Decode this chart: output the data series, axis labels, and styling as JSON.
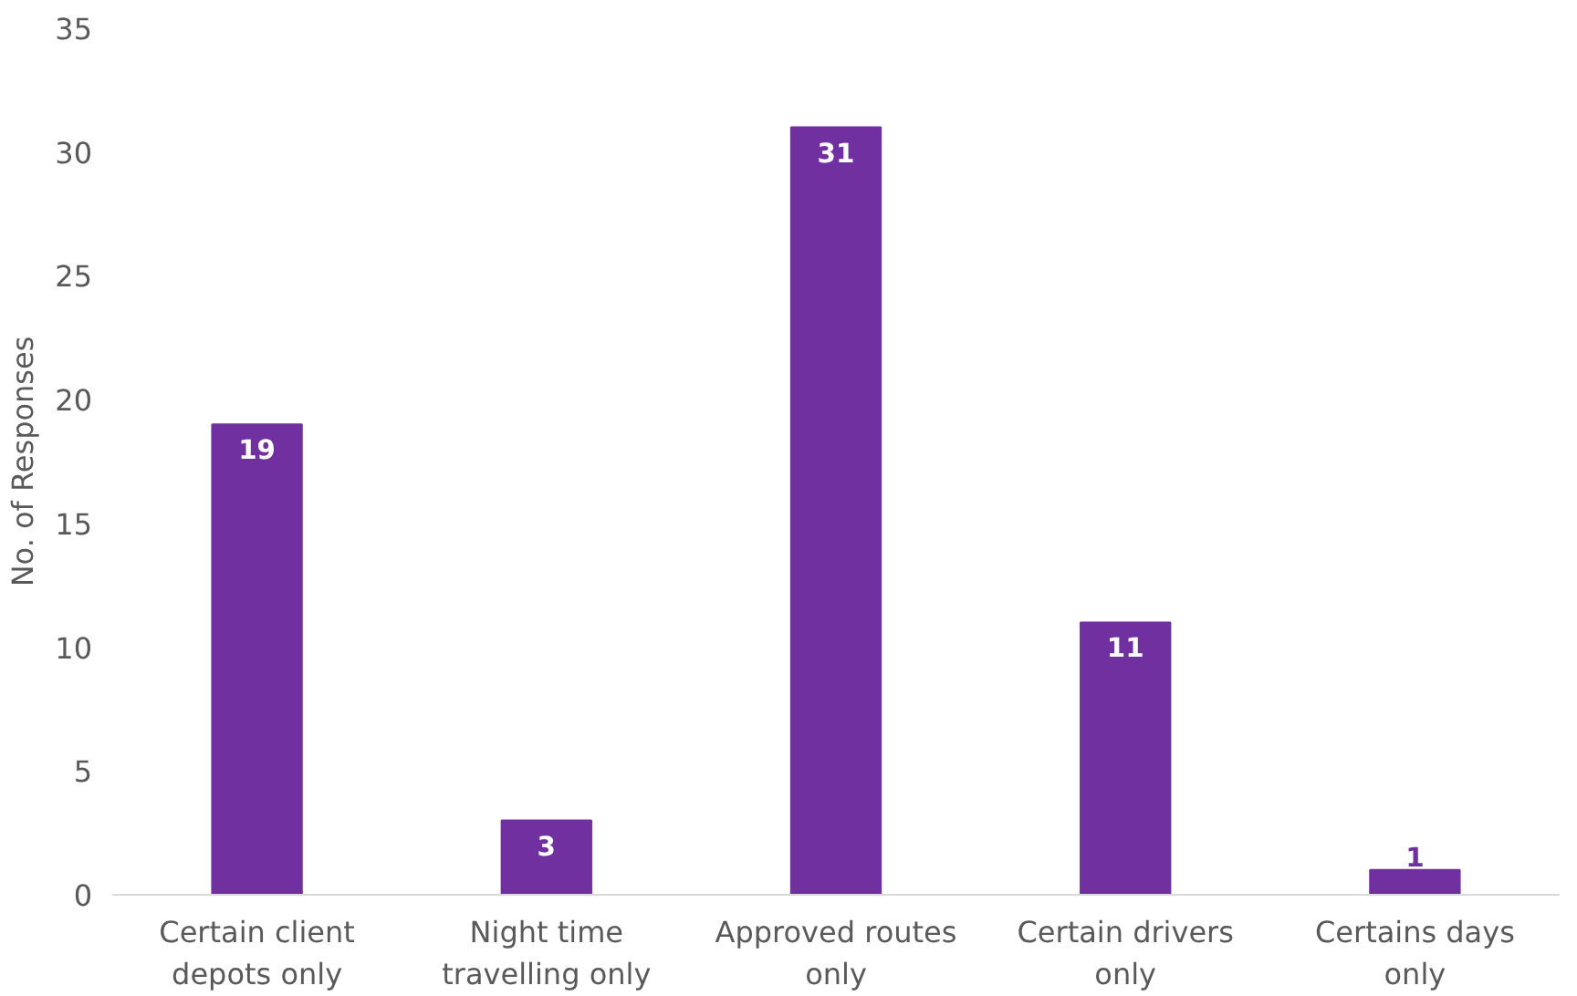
{
  "chart_data": {
    "type": "bar",
    "ylabel": "No. of Responses",
    "categories": [
      "Certain client depots only",
      "Night time travelling only",
      "Approved routes only",
      "Certain drivers only",
      "Certains days only"
    ],
    "values": [
      19,
      3,
      31,
      11,
      1
    ],
    "color": "#7030a0",
    "ylim": [
      0,
      35
    ],
    "yticks": [
      0,
      5,
      10,
      15,
      20,
      25,
      30,
      35
    ],
    "grid": false,
    "data_labels": true
  }
}
